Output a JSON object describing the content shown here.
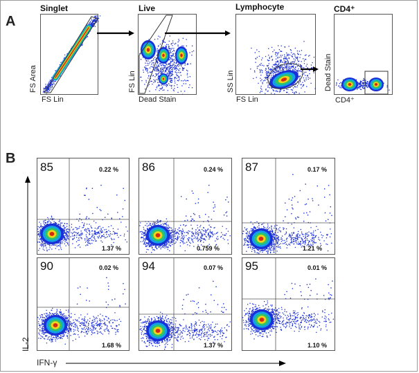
{
  "panel_a": {
    "letter": "A",
    "gates": [
      {
        "title": "Singlet",
        "xlabel": "FS Lin",
        "ylabel": "FS Area"
      },
      {
        "title": "Live",
        "xlabel": "Dead Stain",
        "ylabel": "FS Lin"
      },
      {
        "title": "Lymphocyte",
        "xlabel": "FS Lin",
        "ylabel": "SS Lin"
      },
      {
        "title": "CD4⁺",
        "xlabel": "CD4⁺",
        "ylabel": "Dead Stain"
      }
    ]
  },
  "panel_b": {
    "letter": "B",
    "x_axis_label": "IFN-γ",
    "y_axis_label": "IL-2"
  },
  "chart_data": {
    "type": "scatter",
    "title": "",
    "xlabel": "IFN-γ",
    "ylabel": "IL-2",
    "description_free": true,
    "plots": [
      {
        "donor": "85",
        "upper_right_pct": "0.22 %",
        "lower_right_pct": "1.37 %"
      },
      {
        "donor": "86",
        "upper_right_pct": "0.24 %",
        "lower_right_pct": "0.759 %"
      },
      {
        "donor": "87",
        "upper_right_pct": "0.17 %",
        "lower_right_pct": "1.21 %"
      },
      {
        "donor": "90",
        "upper_right_pct": "0.02 %",
        "lower_right_pct": "1.68 %"
      },
      {
        "donor": "94",
        "upper_right_pct": "0.07 %",
        "lower_right_pct": "1.37 %"
      },
      {
        "donor": "95",
        "upper_right_pct": "0.01 %",
        "lower_right_pct": "1.10 %"
      }
    ],
    "colors": {
      "dot": "#1a2fd6",
      "hot": "#d42a14",
      "mid": "#f2d21a",
      "warm": "#2fc46a",
      "cool": "#14a0e6",
      "gate": "#333333",
      "arrow": "#000000"
    }
  }
}
